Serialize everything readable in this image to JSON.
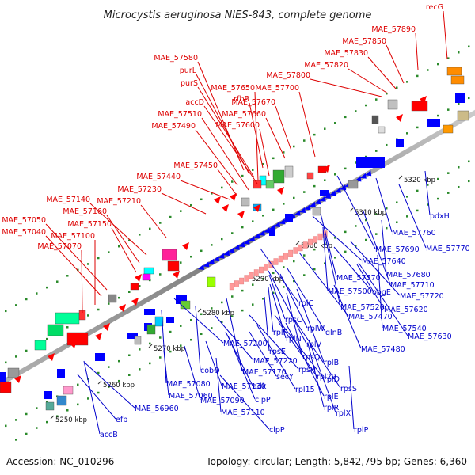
{
  "title": "Microcystis aeruginosa NIES-843, complete genome",
  "footer": {
    "accession": "Accession: NC_010296",
    "summary": "Topology: circular; Length: 5,842,795 bp; Genes: 6,360"
  },
  "ticks": [
    "5250 kbp",
    "5260 kbp",
    "5270 kbp",
    "5280 kbp",
    "5290 kbp",
    "5300 kbp",
    "5310 kbp",
    "5320 kbp"
  ],
  "colors": {
    "forward_label": "#dd0000",
    "reverse_label": "#0000cc",
    "backbone": "#808080",
    "dots": "#2a8a2a"
  },
  "forward_labels": [
    "recG",
    "MAE_57890",
    "MAE_57850",
    "MAE_57830",
    "MAE_57820",
    "MAE_57800",
    "MAE_57580",
    "purL",
    "purS",
    "MAE_57650",
    "rfbB",
    "MAE_57700",
    "accD",
    "MAE_57670",
    "MAE_57510",
    "MAE_57660",
    "MAE_57600",
    "MAE_57490",
    "MAE_57450",
    "MAE_57440",
    "MAE_57230",
    "MAE_57210",
    "MAE_57140",
    "MAE_57160",
    "MAE_57150",
    "MAE_57050",
    "MAE_57040",
    "MAE_57100",
    "MAE_57070"
  ],
  "reverse_labels": [
    "pdxH",
    "MAE_57760",
    "MAE_57770",
    "MAE_57690",
    "MAE_57640",
    "MAE_57680",
    "MAE_57570",
    "MAE_57710",
    "obgE",
    "MAE_57720",
    "MAE_57500",
    "MAE_57520",
    "MAE_57620",
    "rplC",
    "MAE_57470",
    "MAE_57540",
    "rpsC",
    "rplW",
    "glnB",
    "MAE_57630",
    "rplF",
    "rplN",
    "MAE_57480",
    "rplV",
    "MAE_57200",
    "rpsE",
    "rpsQ",
    "rplB",
    "MAE_57220",
    "rpsH",
    "cobQ",
    "MAE_57170",
    "secY",
    "rpl29",
    "rplD",
    "MAE_57080",
    "MAE_57130",
    "adk",
    "rpl15",
    "rpsS",
    "MAE_57060",
    "MAE_57090",
    "clpP",
    "rplE",
    "MAE_56960",
    "MAE_57110",
    "rplR",
    "rplX",
    "efp",
    "clpP",
    "rplP",
    "accB"
  ]
}
